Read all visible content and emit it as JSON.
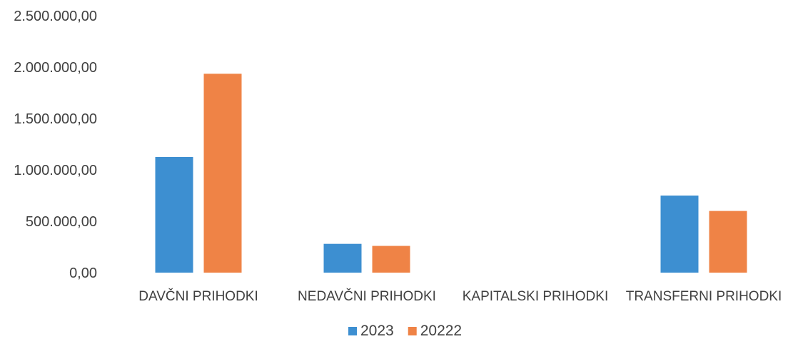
{
  "chart_data": {
    "type": "bar",
    "categories": [
      "DAVČNI PRIHODKI",
      "NEDAVČNI PRIHODKI",
      "KAPITALSKI PRIHODKI",
      "TRANSFERNI PRIHODKI"
    ],
    "series": [
      {
        "name": "2023",
        "color": "#3d8fd1",
        "values": [
          1125000,
          280000,
          0,
          750000
        ]
      },
      {
        "name": "20222",
        "color": "#ef8346",
        "values": [
          1935000,
          260000,
          0,
          600000
        ]
      }
    ],
    "ylim": [
      0,
      2500000
    ],
    "yticks": [
      0,
      500000,
      1000000,
      1500000,
      2000000,
      2500000
    ],
    "ytick_labels": [
      "0,00",
      "500.000,00",
      "1.000.000,00",
      "1.500.000,00",
      "2.000.000,00",
      "2.500.000,00"
    ],
    "grid": false,
    "legend_position": "bottom"
  }
}
